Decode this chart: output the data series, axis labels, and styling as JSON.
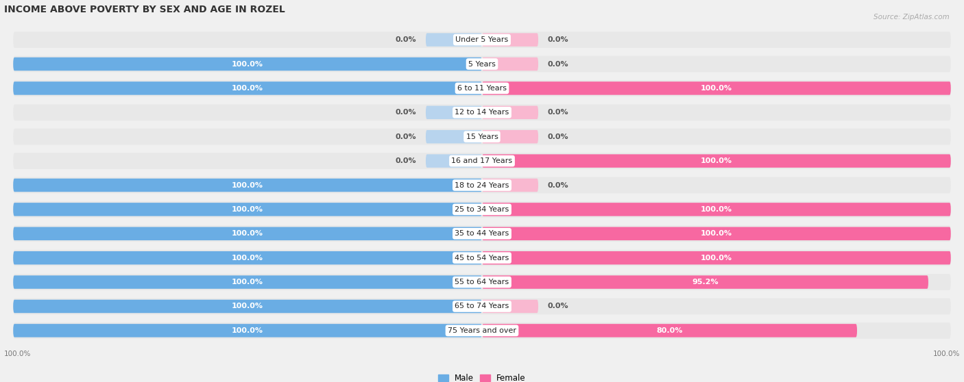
{
  "title": "INCOME ABOVE POVERTY BY SEX AND AGE IN ROZEL",
  "source": "Source: ZipAtlas.com",
  "categories": [
    "Under 5 Years",
    "5 Years",
    "6 to 11 Years",
    "12 to 14 Years",
    "15 Years",
    "16 and 17 Years",
    "18 to 24 Years",
    "25 to 34 Years",
    "35 to 44 Years",
    "45 to 54 Years",
    "55 to 64 Years",
    "65 to 74 Years",
    "75 Years and over"
  ],
  "male": [
    0.0,
    100.0,
    100.0,
    0.0,
    0.0,
    0.0,
    100.0,
    100.0,
    100.0,
    100.0,
    100.0,
    100.0,
    100.0
  ],
  "female": [
    0.0,
    0.0,
    100.0,
    0.0,
    0.0,
    100.0,
    0.0,
    100.0,
    100.0,
    100.0,
    95.2,
    0.0,
    80.0
  ],
  "male_color": "#6aade4",
  "female_color": "#f768a1",
  "male_stub_color": "#b8d4ee",
  "female_stub_color": "#f9b8d0",
  "row_bg_color": "#e8e8e8",
  "fig_bg_color": "#f0f0f0",
  "title_fontsize": 10,
  "label_fontsize": 8,
  "category_fontsize": 8,
  "stub_size": 12
}
